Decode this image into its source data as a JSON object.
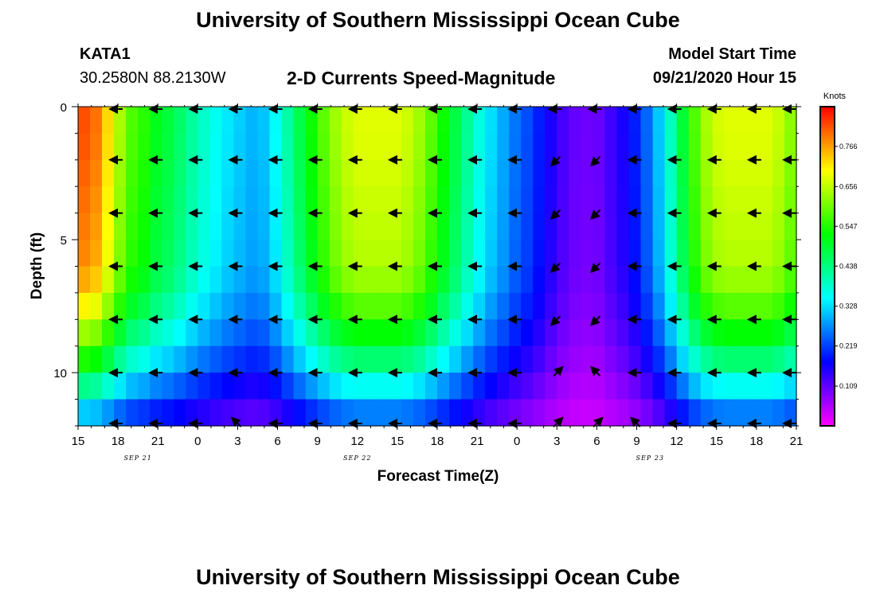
{
  "header": {
    "title_top": "University of Southern Mississippi Ocean Cube",
    "title_bottom": "University of Southern Mississippi Ocean Cube",
    "station_id": "KATA1",
    "station_coords": "30.2580N 88.2130W",
    "subtitle": "2-D Currents Speed-Magnitude",
    "model_start_label": "Model Start Time",
    "model_start_value": "09/21/2020 Hour 15"
  },
  "chart_data": {
    "type": "heatmap",
    "title": "2-D Currents Speed-Magnitude",
    "xlabel": "Forecast Time(Z)",
    "ylabel": "Depth (ft)",
    "x_ticks": [
      "15",
      "18",
      "21",
      "0",
      "3",
      "6",
      "9",
      "12",
      "15",
      "18",
      "21",
      "0",
      "3",
      "6",
      "9",
      "12",
      "15",
      "18",
      "21"
    ],
    "x_date_labels": [
      {
        "label": "SEP 21",
        "hour_index": 4.5
      },
      {
        "label": "SEP 22",
        "hour_index": 21
      },
      {
        "label": "SEP 23",
        "hour_index": 43
      }
    ],
    "x_range_hours": [
      0,
      54
    ],
    "y_ticks": [
      "0",
      "5",
      "10"
    ],
    "y_range_ft": [
      0,
      12
    ],
    "colorbar": {
      "label": "Knots",
      "ticks": [
        "0.766",
        "0.656",
        "0.547",
        "0.438",
        "0.328",
        "0.219",
        "0.109"
      ],
      "range": [
        0.0,
        0.875
      ]
    },
    "speed_profile": {
      "hours": [
        0,
        1,
        2,
        3,
        4,
        5,
        6,
        7,
        8,
        9,
        10,
        11,
        12,
        13,
        14,
        15,
        16,
        17,
        18,
        19,
        20,
        21,
        22,
        23,
        24,
        25,
        26,
        27,
        28,
        29,
        30,
        31,
        32,
        33,
        34,
        35,
        36,
        37,
        38,
        39,
        40,
        41,
        42,
        43,
        44,
        45,
        46,
        47,
        48,
        49,
        50,
        51,
        52,
        53,
        54
      ],
      "surface_knots": [
        0.82,
        0.82,
        0.75,
        0.65,
        0.58,
        0.55,
        0.5,
        0.48,
        0.44,
        0.4,
        0.37,
        0.34,
        0.32,
        0.3,
        0.31,
        0.36,
        0.43,
        0.5,
        0.56,
        0.62,
        0.66,
        0.68,
        0.68,
        0.68,
        0.68,
        0.66,
        0.62,
        0.56,
        0.5,
        0.44,
        0.38,
        0.33,
        0.29,
        0.25,
        0.22,
        0.18,
        0.14,
        0.11,
        0.1,
        0.1,
        0.13,
        0.16,
        0.2,
        0.26,
        0.34,
        0.44,
        0.55,
        0.63,
        0.67,
        0.68,
        0.68,
        0.68,
        0.68,
        0.65,
        0.6
      ],
      "depth_factor_ft": [
        0,
        1,
        2,
        3,
        4,
        5,
        6,
        7,
        8,
        9,
        10,
        11,
        12
      ],
      "depth_factor": [
        1.0,
        1.0,
        0.99,
        0.98,
        0.97,
        0.96,
        0.95,
        0.9,
        0.82,
        0.72,
        0.6,
        0.45,
        0.32
      ]
    },
    "vectors": {
      "depth_rows_ft": [
        0,
        2,
        4,
        6,
        8,
        10,
        12
      ],
      "hours": [
        3,
        6,
        9,
        12,
        15,
        18,
        21,
        24,
        27,
        30,
        33,
        36,
        39,
        42,
        45,
        48,
        51,
        54
      ],
      "directions": [
        [
          "W",
          "W",
          "W",
          "W",
          "W",
          "W",
          "W",
          "W",
          "W",
          "W",
          "W",
          "W",
          "W",
          "W",
          "W",
          "W",
          "W",
          "W"
        ],
        [
          "W",
          "W",
          "W",
          "W",
          "W",
          "W",
          "W",
          "W",
          "W",
          "W",
          "W",
          "SW",
          "SW",
          "W",
          "W",
          "W",
          "W",
          "W"
        ],
        [
          "W",
          "W",
          "W",
          "W",
          "W",
          "W",
          "W",
          "W",
          "W",
          "W",
          "W",
          "SW",
          "SW",
          "W",
          "W",
          "W",
          "W",
          "W"
        ],
        [
          "W",
          "W",
          "W",
          "W",
          "W",
          "W",
          "W",
          "W",
          "W",
          "W",
          "W",
          "SW",
          "SW",
          "W",
          "W",
          "W",
          "W",
          "W"
        ],
        [
          "W",
          "W",
          "W",
          "W",
          "W",
          "W",
          "W",
          "W",
          "W",
          "W",
          "W",
          "SW",
          "SW",
          "W",
          "W",
          "W",
          "W",
          "W"
        ],
        [
          "W",
          "W",
          "W",
          "W",
          "W",
          "W",
          "W",
          "W",
          "W",
          "W",
          "W",
          "NE",
          "NW",
          "W",
          "W",
          "W",
          "W",
          "W"
        ],
        [
          "W",
          "W",
          "W",
          "NW",
          "W",
          "W",
          "W",
          "W",
          "W",
          "W",
          "W",
          "NE",
          "NE",
          "NW",
          "W",
          "W",
          "W",
          "W"
        ]
      ]
    }
  }
}
